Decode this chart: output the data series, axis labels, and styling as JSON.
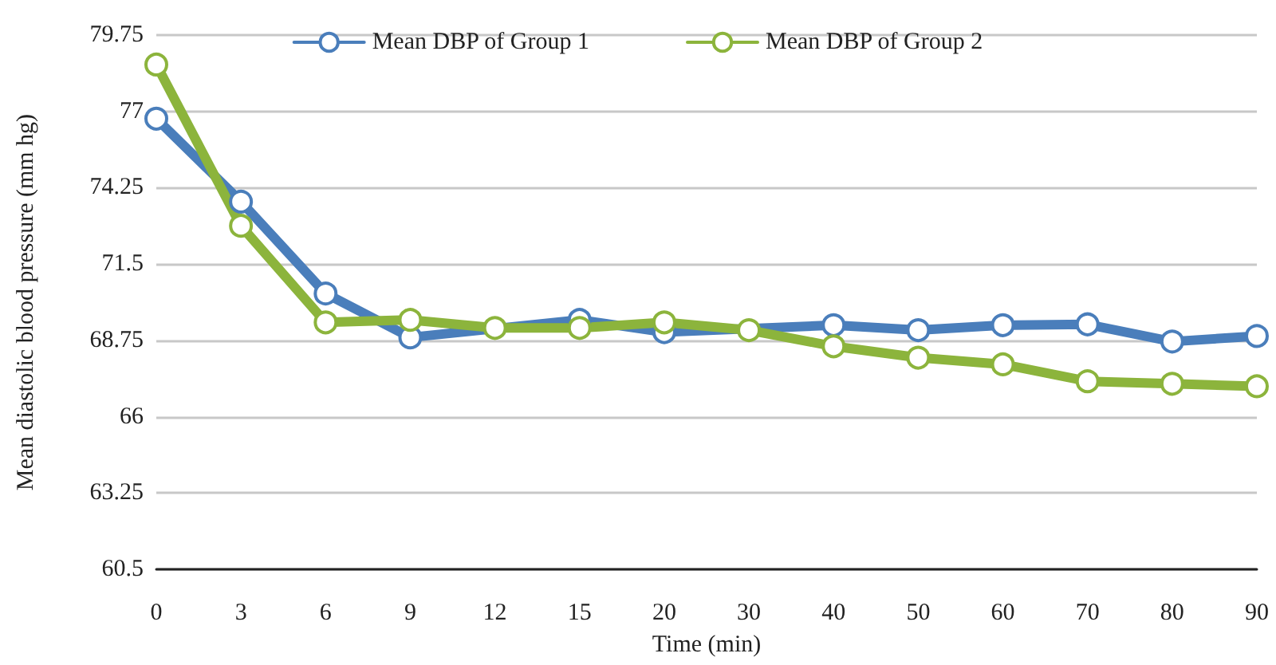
{
  "chart_data": {
    "type": "line",
    "xlabel": "Time (min)",
    "ylabel": "Mean diastolic blood pressure (mm hg)",
    "categories": [
      "0",
      "3",
      "6",
      "9",
      "12",
      "15",
      "20",
      "30",
      "40",
      "50",
      "60",
      "70",
      "80",
      "90"
    ],
    "series": [
      {
        "name": "Mean DBP of Group 1",
        "color": "#4a7ebb",
        "values": [
          76.74,
          73.75,
          70.44,
          68.86,
          null,
          69.49,
          69.05,
          null,
          69.3,
          69.12,
          69.3,
          69.33,
          68.71,
          68.91
        ]
      },
      {
        "name": "Mean DBP of Group 2",
        "color": "#8cb43c",
        "values": [
          78.69,
          72.88,
          69.4,
          69.49,
          69.2,
          69.2,
          69.4,
          69.12,
          68.54,
          68.13,
          67.89,
          67.28,
          67.19,
          67.1
        ]
      }
    ],
    "ylim": [
      60.5,
      79.75
    ],
    "yticks": [
      60.5,
      63.25,
      66,
      68.75,
      71.5,
      74.25,
      77,
      79.75
    ],
    "grid": "y",
    "legend": "top",
    "marker": "circle",
    "line_style": "solid"
  }
}
